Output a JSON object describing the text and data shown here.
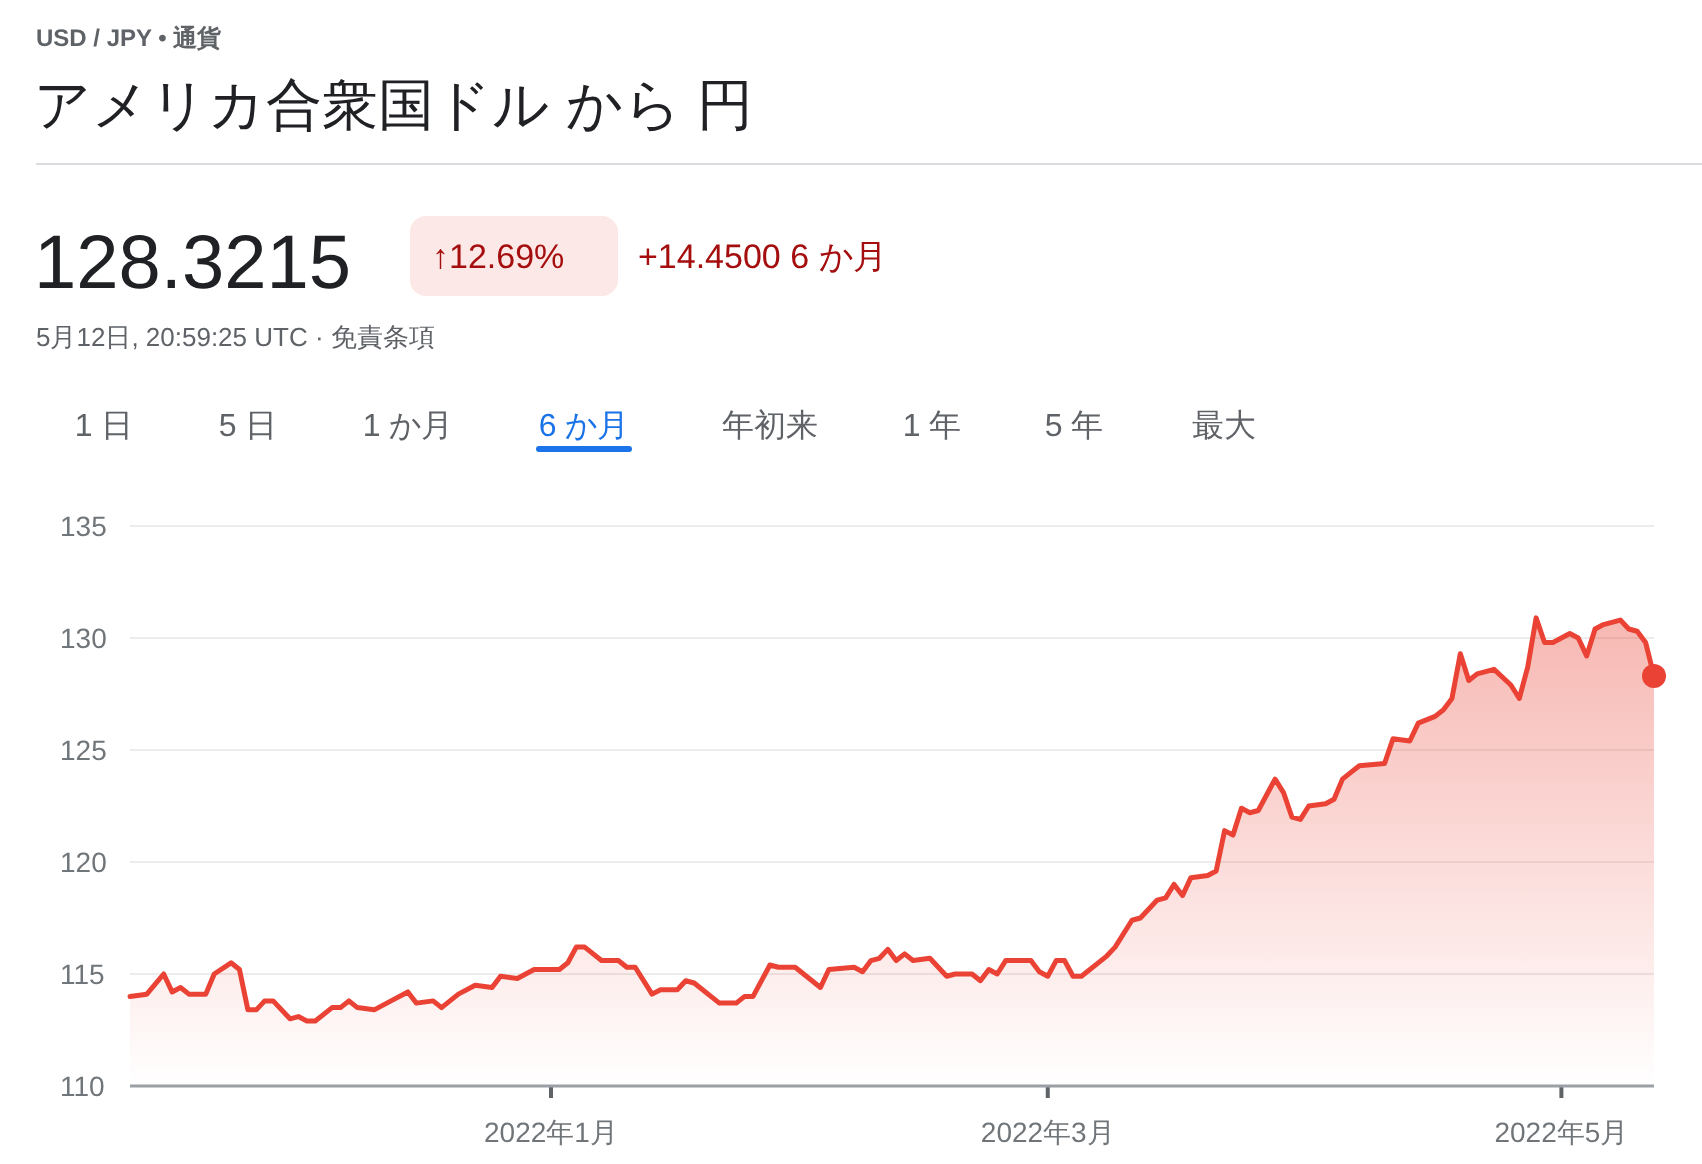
{
  "chart_data": {
    "type": "area",
    "title": "アメリカ合衆国ドル から 円",
    "subtitle": "USD / JPY • 通貨",
    "annotations": [
      "128.3215",
      "↑12.69%",
      "+14.4500 6 か月",
      "5月12日, 20:59:25 UTC · 免責条項",
      "1 日",
      "5 日",
      "1 か月",
      "6 か月",
      "年初来",
      "1 年",
      "5 年",
      "最大"
    ],
    "xlim": [
      "2021-11-12",
      "2022-05-12"
    ],
    "xticks": [
      {
        "value": "2022-01-01",
        "label": "2022年1月"
      },
      {
        "value": "2022-03-01",
        "label": "2022年3月"
      },
      {
        "value": "2022-05-01",
        "label": "2022年5月"
      }
    ],
    "ylim": [
      110,
      135
    ],
    "yticks": [
      110,
      115,
      120,
      125,
      130,
      135
    ],
    "grid": "y",
    "series": [
      {
        "color": "#ea4335",
        "marker": "none",
        "x": [
          "2021-11-12",
          "2021-11-14",
          "2021-11-16",
          "2021-11-17",
          "2021-11-18",
          "2021-11-19",
          "2021-11-21",
          "2021-11-22",
          "2021-11-24",
          "2021-11-25",
          "2021-11-26",
          "2021-11-27",
          "2021-11-28",
          "2021-11-29",
          "2021-12-01",
          "2021-12-02",
          "2021-12-03",
          "2021-12-04",
          "2021-12-06",
          "2021-12-07",
          "2021-12-08",
          "2021-12-09",
          "2021-12-11",
          "2021-12-12",
          "2021-12-13",
          "2021-12-15",
          "2021-12-16",
          "2021-12-18",
          "2021-12-19",
          "2021-12-21",
          "2021-12-23",
          "2021-12-25",
          "2021-12-26",
          "2021-12-28",
          "2021-12-30",
          "2022-01-02",
          "2022-01-03",
          "2022-01-04",
          "2022-01-05",
          "2022-01-07",
          "2022-01-09",
          "2022-01-10",
          "2022-01-11",
          "2022-01-13",
          "2022-01-14",
          "2022-01-16",
          "2022-01-17",
          "2022-01-18",
          "2022-01-21",
          "2022-01-23",
          "2022-01-24",
          "2022-01-25",
          "2022-01-27",
          "2022-01-28",
          "2022-01-30",
          "2022-01-31",
          "2022-02-02",
          "2022-02-03",
          "2022-02-06",
          "2022-02-07",
          "2022-02-08",
          "2022-02-09",
          "2022-02-10",
          "2022-02-11",
          "2022-02-12",
          "2022-02-13",
          "2022-02-15",
          "2022-02-17",
          "2022-02-18",
          "2022-02-20",
          "2022-02-21",
          "2022-02-22",
          "2022-02-23",
          "2022-02-24",
          "2022-02-27",
          "2022-02-28",
          "2022-03-01",
          "2022-03-02",
          "2022-03-03",
          "2022-03-04",
          "2022-03-05",
          "2022-03-08",
          "2022-03-09",
          "2022-03-11",
          "2022-03-12",
          "2022-03-14",
          "2022-03-15",
          "2022-03-16",
          "2022-03-17",
          "2022-03-18",
          "2022-03-20",
          "2022-03-21",
          "2022-03-22",
          "2022-03-23",
          "2022-03-24",
          "2022-03-25",
          "2022-03-26",
          "2022-03-28",
          "2022-03-29",
          "2022-03-30",
          "2022-03-31",
          "2022-04-01",
          "2022-04-03",
          "2022-04-04",
          "2022-04-05",
          "2022-04-06",
          "2022-04-07",
          "2022-04-10",
          "2022-04-11",
          "2022-04-13",
          "2022-04-14",
          "2022-04-16",
          "2022-04-17",
          "2022-04-18",
          "2022-04-19",
          "2022-04-20",
          "2022-04-21",
          "2022-04-23",
          "2022-04-25",
          "2022-04-26",
          "2022-04-27",
          "2022-04-28",
          "2022-04-29",
          "2022-04-30",
          "2022-05-02",
          "2022-05-03",
          "2022-05-04",
          "2022-05-05",
          "2022-05-06",
          "2022-05-08",
          "2022-05-09",
          "2022-05-10",
          "2022-05-11",
          "2022-05-12"
        ],
        "values": [
          114.0,
          114.1,
          115.0,
          114.2,
          114.4,
          114.1,
          114.1,
          115.0,
          115.5,
          115.2,
          113.4,
          113.4,
          113.8,
          113.8,
          113.0,
          113.1,
          112.9,
          112.9,
          113.5,
          113.5,
          113.8,
          113.5,
          113.4,
          113.6,
          113.8,
          114.2,
          113.7,
          113.8,
          113.5,
          114.1,
          114.5,
          114.4,
          114.9,
          114.8,
          115.2,
          115.2,
          115.5,
          116.2,
          116.2,
          115.6,
          115.6,
          115.3,
          115.3,
          114.1,
          114.3,
          114.3,
          114.7,
          114.6,
          113.7,
          113.7,
          114.0,
          114.0,
          115.4,
          115.3,
          115.3,
          115.0,
          114.4,
          115.2,
          115.3,
          115.1,
          115.6,
          115.7,
          116.1,
          115.6,
          115.9,
          115.6,
          115.7,
          114.9,
          115.0,
          115.0,
          114.7,
          115.2,
          115.0,
          115.6,
          115.6,
          115.1,
          114.9,
          115.6,
          115.6,
          114.9,
          114.9,
          115.8,
          116.2,
          117.4,
          117.5,
          118.3,
          118.4,
          119.0,
          118.5,
          119.3,
          119.4,
          119.6,
          121.4,
          121.2,
          122.4,
          122.2,
          122.3,
          123.7,
          123.1,
          122.0,
          121.9,
          122.5,
          122.6,
          122.8,
          123.7,
          124.0,
          124.3,
          124.4,
          125.5,
          125.4,
          126.2,
          126.5,
          126.8,
          127.3,
          129.3,
          128.1,
          128.4,
          128.6,
          127.9,
          127.3,
          128.7,
          130.9,
          129.8,
          129.8,
          130.2,
          130.0,
          129.2,
          130.4,
          130.6,
          130.8,
          130.4,
          130.3,
          129.8,
          128.3
        ]
      },
      {
        "type": "scatter",
        "color": "#ea4335",
        "marker": "circle",
        "x": [
          "2022-05-12"
        ],
        "values": [
          128.3
        ]
      }
    ]
  }
}
